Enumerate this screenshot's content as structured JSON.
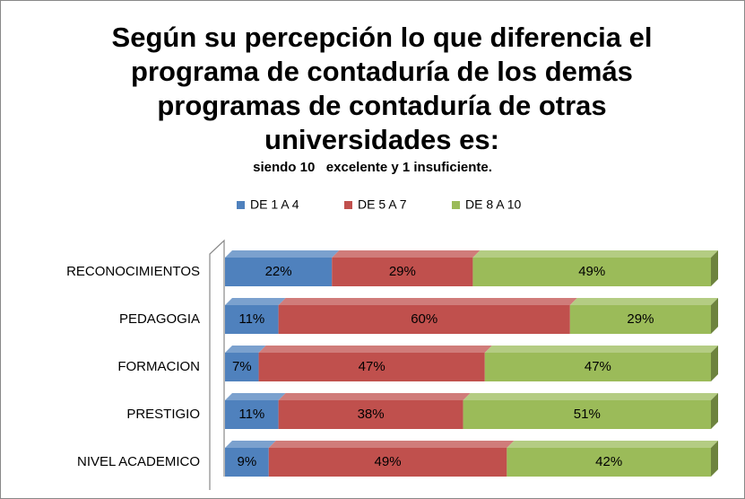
{
  "chart_data": {
    "type": "bar",
    "orientation": "horizontal",
    "stacked": "percent",
    "title": "Según su percepción lo que diferencia el programa de contaduría de los demás programas de contaduría de otras universidades es:",
    "subtitle": "siendo 10   excelente y 1 insuficiente.",
    "legend": "top",
    "categories": [
      "RECONOCIMIENTOS",
      "PEDAGOGIA",
      "FORMACION",
      "PRESTIGIO",
      "NIVEL ACADEMICO"
    ],
    "series": [
      {
        "name": "DE 1 A 4",
        "color": "#4f81bd",
        "values": [
          22,
          11,
          7,
          11,
          9
        ],
        "value_labels": [
          "22%",
          "11%",
          "7%",
          "11%",
          "9%"
        ]
      },
      {
        "name": "DE 5 A 7",
        "color": "#c0504d",
        "values": [
          29,
          60,
          47,
          38,
          49
        ],
        "value_labels": [
          "29%",
          "60%",
          "47%",
          "38%",
          "49%"
        ]
      },
      {
        "name": "DE 8 A 10",
        "color": "#9bbb59",
        "values": [
          49,
          29,
          47,
          51,
          42
        ],
        "value_labels": [
          "49%",
          "29%",
          "47%",
          "51%",
          "42%"
        ]
      }
    ]
  }
}
